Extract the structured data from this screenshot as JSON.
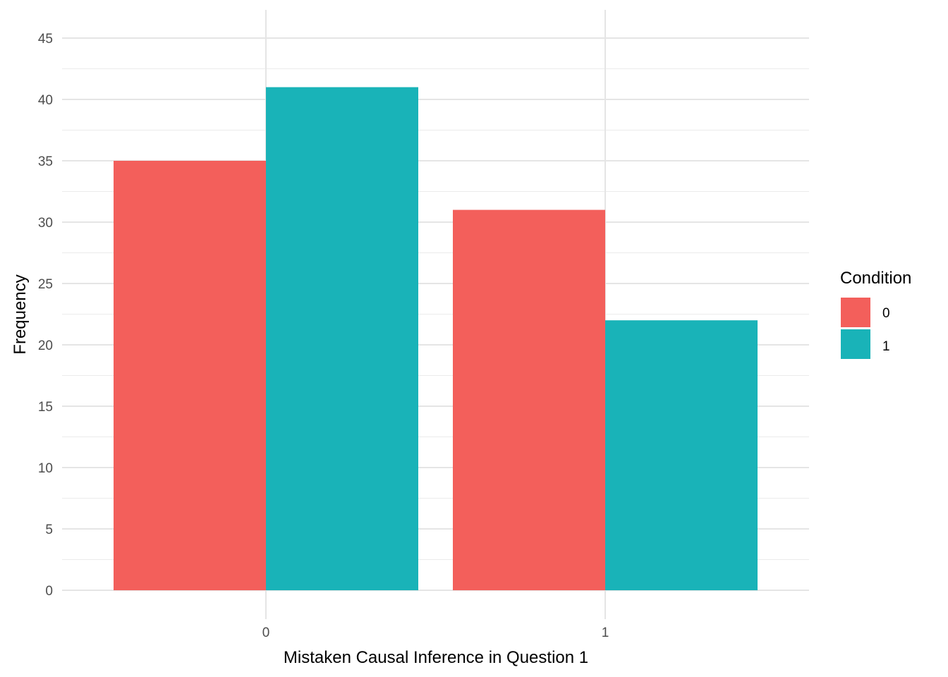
{
  "chart_data": {
    "type": "bar",
    "categories": [
      "0",
      "1"
    ],
    "series": [
      {
        "name": "0",
        "color": "#F8766D",
        "values": [
          35,
          31
        ]
      },
      {
        "name": "1",
        "color": "#00BFC4",
        "values": [
          41,
          22
        ]
      }
    ],
    "bar_colors": [
      "#F35F5B",
      "#19B3B8"
    ],
    "xlabel": "Mistaken Causal Inference in Question 1",
    "ylabel": "Frequency",
    "ylim": [
      0,
      45
    ],
    "yticks": [
      0,
      5,
      10,
      15,
      20,
      25,
      30,
      35,
      40,
      45
    ],
    "grid": true,
    "legend": {
      "title": "Condition",
      "position": "right",
      "entries": [
        "0",
        "1"
      ]
    }
  }
}
